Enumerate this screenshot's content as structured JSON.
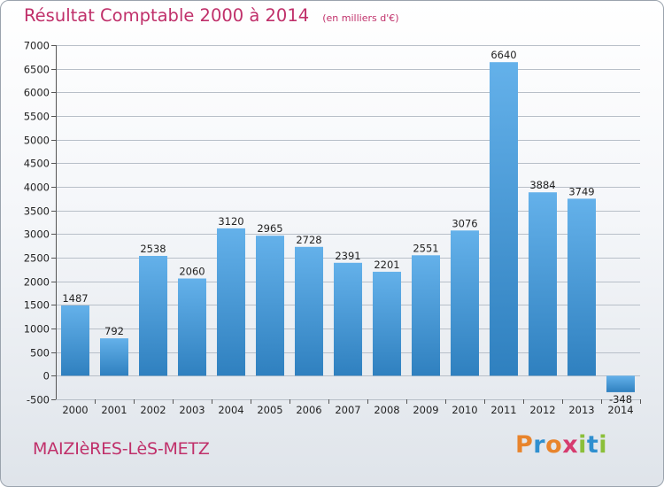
{
  "header": {
    "title": "Résultat Comptable 2000 à 2014",
    "unit": "(en milliers d'€)"
  },
  "footer": {
    "commune": "MAIZIèRES-LèS-METZ",
    "logo_letters": [
      {
        "ch": "P",
        "color": "#e8842c"
      },
      {
        "ch": "r",
        "color": "#2f8fcf"
      },
      {
        "ch": "o",
        "color": "#e8842c"
      },
      {
        "ch": "x",
        "color": "#d63b6f"
      },
      {
        "ch": "i",
        "color": "#8bbf3a"
      },
      {
        "ch": "t",
        "color": "#2f8fcf"
      },
      {
        "ch": "i",
        "color": "#8bbf3a"
      }
    ]
  },
  "colors": {
    "bar_light": "#64b1ea",
    "bar_dark": "#2f80bf",
    "grid": "#b8bfc8",
    "title": "#c0306a"
  },
  "chart_data": {
    "type": "bar",
    "title": "Résultat Comptable 2000 à 2014",
    "subtitle": "(en milliers d'€)",
    "xlabel": "",
    "ylabel": "",
    "categories": [
      "2000",
      "2001",
      "2002",
      "2003",
      "2004",
      "2005",
      "2006",
      "2007",
      "2008",
      "2009",
      "2010",
      "2011",
      "2012",
      "2013",
      "2014"
    ],
    "values": [
      1487,
      792,
      2538,
      2060,
      3120,
      2965,
      2728,
      2391,
      2201,
      2551,
      3076,
      6640,
      3884,
      3749,
      -348
    ],
    "value_labels": [
      "1487",
      "792",
      "2538",
      "2060",
      "3120",
      "2965",
      "2728",
      "2391",
      "2201",
      "2551",
      "3076",
      "6640",
      "3884",
      "3749",
      "-348"
    ],
    "ylim": [
      -500,
      7000
    ],
    "yticks": [
      -500,
      0,
      500,
      1000,
      1500,
      2000,
      2500,
      3000,
      3500,
      4000,
      4500,
      5000,
      5500,
      6000,
      6500,
      7000
    ],
    "ytick_labels": [
      "-500",
      "0",
      "500",
      "1000",
      "1500",
      "2000",
      "2500",
      "3000",
      "3500",
      "4000",
      "4500",
      "5000",
      "5500",
      "6000",
      "6500",
      "7000"
    ],
    "grid": true,
    "legend": "none"
  }
}
